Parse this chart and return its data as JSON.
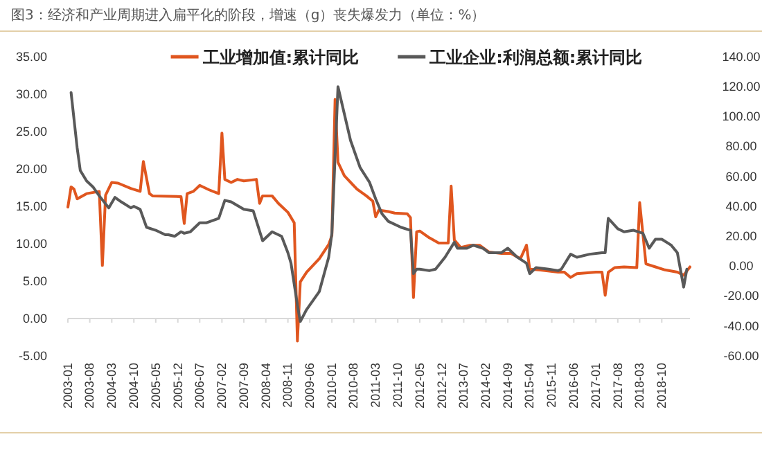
{
  "chart_data": {
    "type": "line",
    "title": "图3：经济和产业周期进入扁平化的阶段，增速（g）丧失爆发力（单位：%）",
    "xlim": [
      "2003-01",
      "2019-07"
    ],
    "xticks": [
      "2003-01",
      "2003-08",
      "2004-03",
      "2004-10",
      "2005-05",
      "2005-12",
      "2006-07",
      "2007-02",
      "2007-09",
      "2008-04",
      "2008-11",
      "2009-06",
      "2010-01",
      "2010-08",
      "2011-03",
      "2011-10",
      "2012-05",
      "2012-12",
      "2013-07",
      "2014-02",
      "2014-09",
      "2015-04",
      "2015-11",
      "2016-06",
      "2017-01",
      "2017-08",
      "2018-03",
      "2018-10"
    ],
    "ylim": [
      -5,
      35
    ],
    "yticks": [
      {
        "value": -5,
        "label": "-5.00"
      },
      {
        "value": 0,
        "label": "0.00"
      },
      {
        "value": 5,
        "label": "5.00"
      },
      {
        "value": 10,
        "label": "10.00"
      },
      {
        "value": 15,
        "label": "15.00"
      },
      {
        "value": 20,
        "label": "20.00"
      },
      {
        "value": 25,
        "label": "25.00"
      },
      {
        "value": 30,
        "label": "30.00"
      },
      {
        "value": 35,
        "label": "35.00"
      }
    ],
    "y2lim": [
      -60,
      140
    ],
    "y2ticks": [
      {
        "value": -60,
        "label": "-60.00"
      },
      {
        "value": -40,
        "label": "-40.00"
      },
      {
        "value": -20,
        "label": "-20.00"
      },
      {
        "value": 0,
        "label": "0.00"
      },
      {
        "value": 20,
        "label": "20.00"
      },
      {
        "value": 40,
        "label": "40.00"
      },
      {
        "value": 60,
        "label": "60.00"
      },
      {
        "value": 80,
        "label": "80.00"
      },
      {
        "value": 100,
        "label": "100.00"
      },
      {
        "value": 120,
        "label": "120.00"
      },
      {
        "value": 140,
        "label": "140.00"
      }
    ],
    "legend": "top",
    "marker": "none",
    "line_style": "solid",
    "series": [
      {
        "name": "工业增加值:累计同比",
        "color": "#e0561f",
        "x": [
          "2003-01",
          "2003-02",
          "2003-03",
          "2003-04",
          "2003-07",
          "2003-11",
          "2003-12",
          "2004-01",
          "2004-03",
          "2004-05",
          "2004-09",
          "2004-12",
          "2005-01",
          "2005-03",
          "2005-04",
          "2006-01",
          "2006-02",
          "2006-03",
          "2006-05",
          "2006-07",
          "2006-10",
          "2007-01",
          "2007-02",
          "2007-03",
          "2007-05",
          "2007-07",
          "2007-09",
          "2008-01",
          "2008-02",
          "2008-03",
          "2008-06",
          "2008-08",
          "2008-11",
          "2009-01",
          "2009-02",
          "2009-03",
          "2009-05",
          "2009-09",
          "2009-12",
          "2010-01",
          "2010-02",
          "2010-03",
          "2010-05",
          "2010-09",
          "2010-12",
          "2011-02",
          "2011-03",
          "2011-04",
          "2011-07",
          "2011-09",
          "2012-01",
          "2012-02",
          "2012-03",
          "2012-04",
          "2012-05",
          "2012-08",
          "2012-11",
          "2013-02",
          "2013-03",
          "2013-04",
          "2013-06",
          "2013-09",
          "2013-12",
          "2014-03",
          "2014-07",
          "2014-10",
          "2015-01",
          "2015-03",
          "2015-04",
          "2015-07",
          "2016-01",
          "2016-03",
          "2016-05",
          "2016-07",
          "2017-01",
          "2017-03",
          "2017-04",
          "2017-05",
          "2017-07",
          "2017-10",
          "2018-02",
          "2018-03",
          "2018-05",
          "2018-08",
          "2018-11",
          "2019-03",
          "2019-05",
          "2019-07"
        ],
        "values": [
          14.9,
          17.6,
          17.3,
          16.0,
          16.7,
          17.0,
          7.1,
          16.5,
          18.2,
          18.1,
          17.4,
          17.0,
          21.0,
          16.7,
          16.4,
          16.3,
          12.7,
          16.7,
          17.0,
          17.8,
          17.2,
          16.7,
          24.8,
          18.6,
          18.2,
          18.6,
          18.4,
          18.6,
          15.4,
          16.4,
          16.4,
          15.4,
          14.2,
          12.8,
          -3.0,
          4.9,
          6.2,
          8.0,
          9.9,
          11.1,
          29.3,
          20.9,
          19.1,
          17.3,
          16.4,
          15.7,
          13.6,
          14.5,
          14.3,
          14.1,
          14.0,
          13.5,
          2.8,
          11.6,
          11.7,
          10.8,
          10.1,
          10.1,
          17.7,
          10.5,
          9.5,
          9.8,
          9.8,
          8.9,
          8.7,
          8.7,
          8.0,
          9.8,
          6.6,
          6.5,
          6.2,
          6.2,
          5.5,
          6.0,
          6.2,
          6.2,
          3.1,
          6.2,
          6.8,
          6.9,
          6.8,
          15.5,
          7.3,
          6.9,
          6.5,
          6.2,
          5.8,
          6.9
        ]
      },
      {
        "name": "工业企业:利润总额:累计同比",
        "color": "#595959",
        "axis": "y2",
        "x": [
          "2003-02",
          "2003-04",
          "2003-05",
          "2003-07",
          "2003-09",
          "2003-11",
          "2004-02",
          "2004-04",
          "2004-06",
          "2004-09",
          "2004-10",
          "2004-12",
          "2005-02",
          "2005-05",
          "2005-08",
          "2005-09",
          "2005-11",
          "2006-01",
          "2006-02",
          "2006-04",
          "2006-07",
          "2006-09",
          "2007-01",
          "2007-03",
          "2007-05",
          "2007-09",
          "2007-12",
          "2008-03",
          "2008-06",
          "2008-09",
          "2008-11",
          "2008-12",
          "2009-02",
          "2009-03",
          "2009-05",
          "2009-09",
          "2009-12",
          "2010-01",
          "2010-03",
          "2010-07",
          "2010-10",
          "2011-01",
          "2011-03",
          "2011-05",
          "2011-07",
          "2011-11",
          "2012-02",
          "2012-03",
          "2012-04",
          "2012-05",
          "2012-08",
          "2012-10",
          "2013-01",
          "2013-04",
          "2013-05",
          "2013-08",
          "2013-10",
          "2014-01",
          "2014-03",
          "2014-07",
          "2014-09",
          "2014-12",
          "2015-03",
          "2015-04",
          "2015-06",
          "2015-10",
          "2016-01",
          "2016-02",
          "2016-05",
          "2016-07",
          "2016-11",
          "2017-03",
          "2017-04",
          "2017-05",
          "2017-08",
          "2017-10",
          "2018-01",
          "2018-04",
          "2018-06",
          "2018-08",
          "2018-10",
          "2019-01",
          "2019-03",
          "2019-05",
          "2019-06"
        ],
        "values": [
          116,
          79,
          64,
          57,
          53,
          47,
          39,
          46,
          43,
          39,
          40,
          38,
          26,
          24,
          21,
          21,
          20,
          23,
          22,
          23,
          29,
          29,
          32,
          44,
          43,
          38,
          37,
          17,
          23,
          20,
          9,
          2,
          -26,
          -37,
          -29,
          -17,
          6,
          22,
          120,
          84,
          66,
          56,
          45,
          35,
          30,
          26,
          24,
          -5,
          -2,
          -2,
          -3,
          -2,
          6,
          16,
          12,
          12,
          14,
          12,
          9,
          9,
          12,
          6,
          2,
          -5,
          -1,
          -2,
          -3,
          -2,
          8,
          6,
          8,
          9,
          9,
          32,
          25,
          23,
          24,
          22,
          12,
          18,
          18,
          14,
          9,
          -14,
          -2
        ]
      }
    ]
  }
}
